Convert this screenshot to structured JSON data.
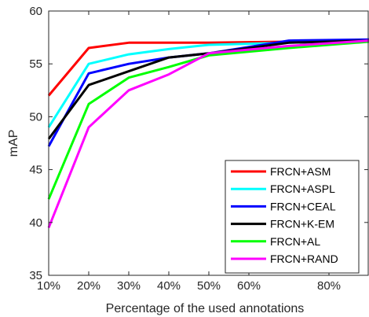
{
  "chart_data": {
    "type": "line",
    "title": "",
    "xlabel": "Percentage of the used annotations",
    "ylabel": "mAP",
    "xlim": [
      0.1,
      0.9
    ],
    "ylim": [
      35,
      60
    ],
    "xticks": [
      0.1,
      0.2,
      0.3,
      0.4,
      0.5,
      0.6,
      0.8
    ],
    "xtick_labels": [
      "10%",
      "20%",
      "30%",
      "40%",
      "50%",
      "60%",
      "80%"
    ],
    "yticks": [
      35,
      40,
      45,
      50,
      55,
      60
    ],
    "ytick_labels": [
      "35",
      "40",
      "45",
      "50",
      "55",
      "60"
    ],
    "grid": false,
    "legend_position": "bottom-right",
    "x": [
      0.1,
      0.2,
      0.3,
      0.4,
      0.5,
      0.7,
      0.9
    ],
    "series": [
      {
        "name": "FRCN+ASM",
        "color": "#ff0000",
        "values": [
          52.0,
          56.5,
          57.0,
          57.0,
          57.0,
          57.1,
          57.2
        ]
      },
      {
        "name": "FRCN+ASPL",
        "color": "#00ffff",
        "values": [
          49.0,
          55.0,
          55.9,
          56.4,
          56.8,
          57.0,
          57.2
        ]
      },
      {
        "name": "FRCN+CEAL",
        "color": "#0000ff",
        "values": [
          47.2,
          54.1,
          55.0,
          55.6,
          56.0,
          57.2,
          57.3
        ]
      },
      {
        "name": "FRCN+K-EM",
        "color": "#000000",
        "values": [
          47.9,
          53.0,
          54.3,
          55.6,
          56.0,
          57.0,
          57.2
        ]
      },
      {
        "name": "FRCN+AL",
        "color": "#00ff00",
        "values": [
          42.2,
          51.2,
          53.7,
          54.7,
          55.8,
          56.5,
          57.1
        ]
      },
      {
        "name": "FRCN+RAND",
        "color": "#ff00ff",
        "values": [
          39.5,
          49.0,
          52.5,
          54.0,
          56.0,
          56.7,
          57.2
        ]
      }
    ]
  }
}
